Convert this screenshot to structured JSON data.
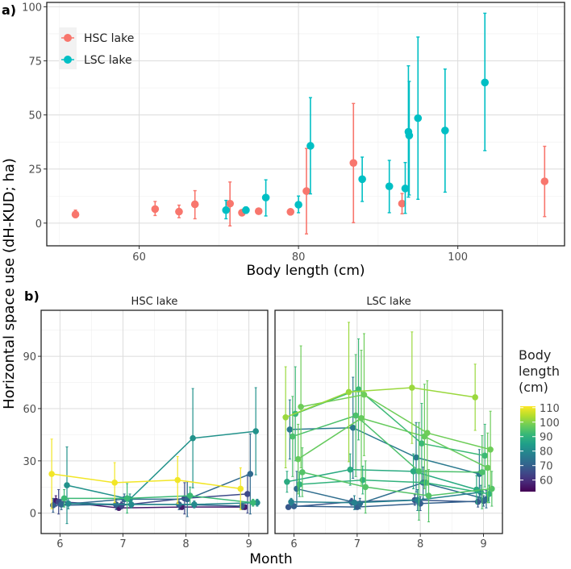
{
  "chart_data": [
    {
      "panel_label": "a)",
      "type": "scatter",
      "xlabel": "Body length (cm)",
      "ylabel": "Horizontal space use (dH-KUD; ha)",
      "xlim": [
        48.4,
        113.4
      ],
      "ylim": [
        -10.5,
        102
      ],
      "xticks": [
        60,
        80,
        100
      ],
      "yticks": [
        0,
        25,
        50,
        75,
        100
      ],
      "grid": true,
      "legend_position": "top-left",
      "series": [
        {
          "name": "HSC lake",
          "color": "#F8766D",
          "x": [
            52,
            62,
            65,
            67,
            71.4,
            72.9,
            75,
            79,
            81,
            86.9,
            93,
            110.9
          ],
          "y": [
            4,
            6.5,
            5.3,
            8.7,
            9,
            4.8,
            5.5,
            5.2,
            14.8,
            27.8,
            9,
            19.3
          ],
          "lo": [
            2.5,
            3.5,
            2.5,
            2,
            -1.3,
            4.2,
            5,
            4.5,
            -5,
            0.2,
            4.3,
            3
          ],
          "hi": [
            6,
            10,
            8.3,
            15,
            19,
            5.4,
            6,
            6,
            34.5,
            55.3,
            13.7,
            35.5
          ]
        },
        {
          "name": "LSC lake",
          "color": "#00BFC4",
          "x": [
            70.9,
            73.4,
            75.9,
            80,
            81.5,
            88,
            91.4,
            93.4,
            93.8,
            93.9,
            95,
            98.4,
            103.4
          ],
          "y": [
            6,
            6,
            11.8,
            8.5,
            35.7,
            20.3,
            17,
            16,
            42.2,
            40.5,
            48.5,
            42.8,
            65
          ],
          "lo": [
            2,
            4.5,
            3.3,
            4.8,
            13.5,
            10,
            4.8,
            4.5,
            12,
            13,
            11,
            14.3,
            33.5
          ],
          "hi": [
            10.5,
            7.5,
            20,
            12.5,
            58,
            30.5,
            29,
            28,
            72.7,
            65.5,
            86,
            71.2,
            97
          ]
        }
      ]
    },
    {
      "panel_label": "b)",
      "type": "line",
      "xlabel": "Month",
      "ylabel": "Horizontal space use (dH-KUD; ha)",
      "x": [
        6,
        7,
        8,
        9
      ],
      "xlim": [
        5.7,
        9.3
      ],
      "ylim": [
        -11.7,
        116.4
      ],
      "yticks": [
        0,
        30,
        60,
        90
      ],
      "grid": true,
      "colorbar": {
        "title": "Body length (cm)",
        "title_lines": [
          "Body",
          "length",
          "(cm)"
        ],
        "ticks": [
          60,
          70,
          80,
          90,
          100,
          110
        ],
        "range": [
          52,
          111
        ],
        "palette": "viridis"
      },
      "facets": [
        {
          "name": "HSC lake",
          "series": [
            {
              "length": 110,
              "y": [
                22.5,
                17.5,
                19,
                14
              ],
              "err": [
                20,
                11.5,
                13.5,
                12
              ]
            },
            {
              "length": 82,
              "y": [
                16,
                8,
                43,
                47
              ],
              "err": [
                22,
                3,
                28.5,
                25
              ]
            },
            {
              "length": 92,
              "y": [
                8.5,
                8.5,
                10,
                6
              ],
              "err": [
                5,
                8.5,
                5,
                2
              ]
            },
            {
              "length": 72,
              "y": [
                5,
                8,
                8,
                22.5
              ],
              "err": [
                3,
                3,
                10,
                23
              ]
            },
            {
              "length": 65,
              "y": [
                6.5,
                4.5,
                8.5,
                11
              ],
              "err": [
                7,
                2,
                9,
                11
              ]
            },
            {
              "length": 56,
              "y": [
                7,
                3,
                3.5,
                3.5
              ],
              "err": [
                3,
                1,
                1,
                1
              ]
            },
            {
              "length": 70,
              "y": [
                4.5,
                5,
                5,
                4
              ],
              "err": [
                4,
                3,
                3,
                2
              ]
            },
            {
              "length": 80,
              "y": [
                5.5,
                5,
                5,
                6
              ],
              "err": [
                3,
                2,
                2,
                2
              ]
            }
          ]
        },
        {
          "name": "LSC lake",
          "series": [
            {
              "length": 102,
              "y": [
                55,
                69.5,
                72,
                66.5
              ],
              "err": [
                29,
                40,
                32,
                19
              ]
            },
            {
              "length": 98,
              "y": [
                61,
                68,
                46,
                36.5
              ],
              "err": [
                35,
                35,
                30,
                22
              ]
            },
            {
              "length": 97,
              "y": [
                31,
                54.5,
                44,
                26
              ],
              "err": [
                20,
                39,
                30,
                20
              ]
            },
            {
              "length": 92,
              "y": [
                57,
                71,
                40,
                33
              ],
              "err": [
                27,
                29,
                23,
                18
              ]
            },
            {
              "length": 94,
              "y": [
                44,
                56,
                24,
                23.5
              ],
              "err": [
                23,
                35,
                28,
                21
              ]
            },
            {
              "length": 76,
              "y": [
                48,
                49,
                32,
                22.5
              ],
              "err": [
                17,
                29,
                20,
                14
              ]
            },
            {
              "length": 88,
              "y": [
                18,
                25,
                24,
                13.5
              ],
              "err": [
                6,
                9,
                10,
                8
              ]
            },
            {
              "length": 95,
              "y": [
                23.5,
                15,
                10,
                14
              ],
              "err": [
                14,
                15,
                15,
                10
              ]
            },
            {
              "length": 90,
              "y": [
                16.5,
                19,
                17.5,
                11
              ],
              "err": [
                7,
                8,
                7,
                5
              ]
            },
            {
              "length": 73,
              "y": [
                14,
                5.5,
                17.5,
                8
              ],
              "err": [
                10,
                3,
                9,
                5
              ]
            },
            {
              "length": 70,
              "y": [
                4,
                3.5,
                5.5,
                7
              ],
              "err": [
                1,
                1,
                4,
                3
              ]
            },
            {
              "length": 78,
              "y": [
                6.5,
                6,
                7.5,
                12
              ],
              "err": [
                2,
                4,
                6,
                4
              ]
            },
            {
              "length": 68,
              "y": [
                3.5,
                6.5,
                7.5,
                6.5
              ],
              "err": [
                1,
                2,
                3,
                3
              ]
            }
          ]
        }
      ]
    }
  ]
}
